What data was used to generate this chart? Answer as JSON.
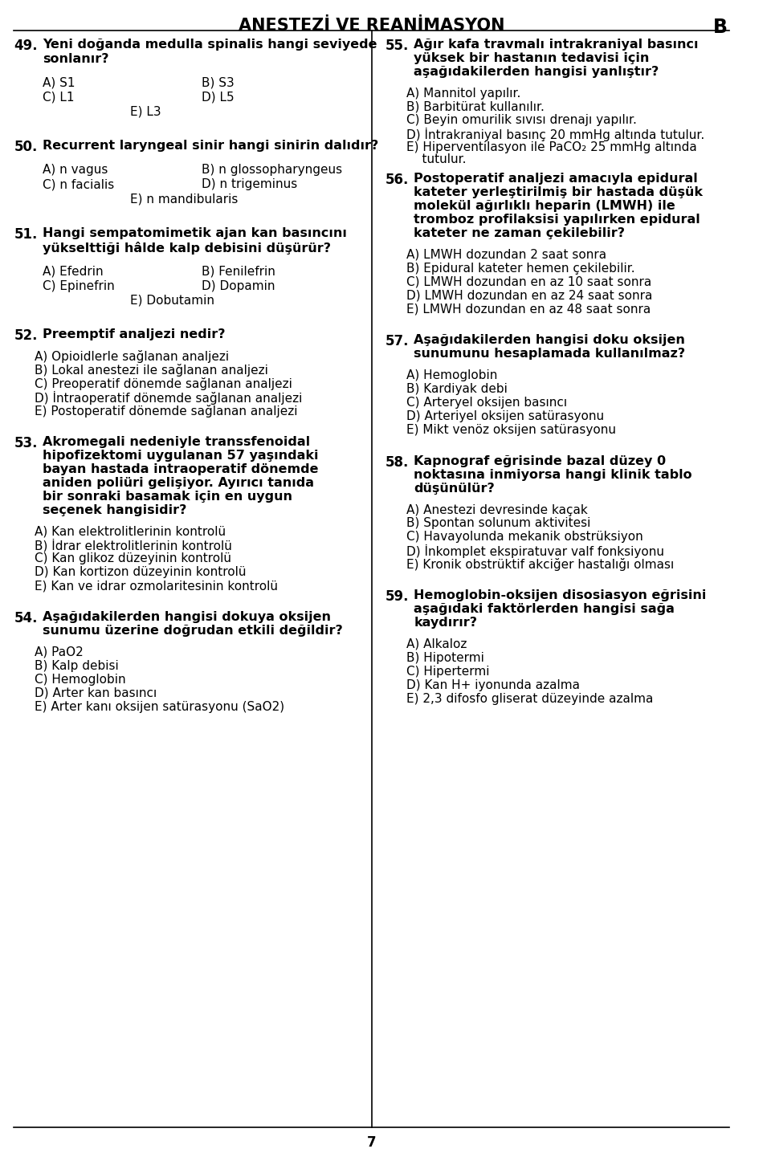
{
  "title": "ANESTEZİ VE REANİMASYON",
  "title_letter": "B",
  "background_color": "#ffffff",
  "text_color": "#000000",
  "font_family": "DejaVu Sans",
  "page_number": "7",
  "left_column": [
    {
      "type": "question",
      "number": "49.",
      "bold": true,
      "text": "Yeni doğanda medulla spinalis hangi seviyede\nsonlanır?",
      "options": [
        {
          "label": "A)",
          "text": "S1",
          "col": 0
        },
        {
          "label": "B)",
          "text": "S3",
          "col": 1
        },
        {
          "label": "C)",
          "text": "L1",
          "col": 0
        },
        {
          "label": "D)",
          "text": "L5",
          "col": 1
        },
        {
          "label": "E)",
          "text": "L3",
          "col": "center"
        }
      ]
    },
    {
      "type": "question",
      "number": "50.",
      "bold": true,
      "text": "Recurrent laryngeal sinir hangi sinirin dalıdır?",
      "options": [
        {
          "label": "A)",
          "text": "n vagus",
          "col": 0
        },
        {
          "label": "B)",
          "text": "n glossopharyngeus",
          "col": 1
        },
        {
          "label": "C)",
          "text": "n facialis",
          "col": 0
        },
        {
          "label": "D)",
          "text": "n trigeminus",
          "col": 1
        },
        {
          "label": "E)",
          "text": "n mandibularis",
          "col": "center"
        }
      ]
    },
    {
      "type": "question",
      "number": "51.",
      "bold": true,
      "text": "Hangi sempatomimetik ajan kan basıncını\nyükselttiği hâlde kalp debisini düşürür?",
      "options": [
        {
          "label": "A)",
          "text": "Efedrin",
          "col": 0
        },
        {
          "label": "B)",
          "text": "Fenilefrin",
          "col": 1
        },
        {
          "label": "C)",
          "text": "Epinefrin",
          "col": 0
        },
        {
          "label": "D)",
          "text": "Dopamin",
          "col": 1
        },
        {
          "label": "E)",
          "text": "Dobutamin",
          "col": "center"
        }
      ]
    },
    {
      "type": "question",
      "number": "52.",
      "bold": true,
      "text": "Preemptif analjezi nedir?",
      "options_list": [
        "A) Opioidlerle sağlanan analjezi",
        "B) Lokal anestezi ile sağlanan analjezi",
        "C) Preoperatif dönemde sağlanan analjezi",
        "D) İntraoperatif dönemde sağlanan analjezi",
        "E) Postoperatif dönemde sağlanan analjezi"
      ]
    },
    {
      "type": "question",
      "number": "53.",
      "bold": true,
      "text": "Akromegali nedeniyle transsfenoidal hipofizektomi uygulanan 57 yaşındaki bayan hastada intraoperatif dönemde aniden poliüri gelişiyor. Ayırıcı tanıda bir sonraki basamak için en uygun seçenek hangisidir?",
      "underline_words": [
        "en uygun"
      ],
      "options_list": [
        "A) Kan elektrolitlerinin kontrolü",
        "B) İdrar elektrolitlerinin kontrolü",
        "C) Kan glikoz düzeyinin kontrolü",
        "D) Kan kortizon düzeyinin kontrolü",
        "E) Kan ve idrar ozmolaritesinin kontrolü"
      ]
    },
    {
      "type": "question",
      "number": "54.",
      "bold": true,
      "text": "Aşağıdakilerden hangisi dokuya oksijen sunumu üzerine doğrudan etkili değildir?",
      "underline_words": [
        "değildir"
      ],
      "options_list": [
        "A) PaO2",
        "B) Kalp debisi",
        "C) Hemoglobin",
        "D) Arter kan basıncı",
        "E) Arter kanı oksijen satürasyonu (SaO2)"
      ]
    }
  ],
  "right_column": [
    {
      "type": "question",
      "number": "55.",
      "bold": true,
      "text": "Ağır kafa travmalı intrakraniyal basıncı yüksek bir hastanın tedavisi için aşağıdakilerden hangisi yanlıştır?",
      "options_list": [
        "A) Mannitol yapılır.",
        "B) Barbitürat kullanılır.",
        "C) Beyin omurilik sıvısı drenajı yapılır.",
        "D) İntrakraniyal basınç 20 mmHg altında tutulur.",
        "E) Hiperventilasyon ile PaCO₂ 25 mmHg altında\n    tutulur."
      ]
    },
    {
      "type": "question",
      "number": "56.",
      "bold": true,
      "text": "Postoperatif analjezi amacıyla epidural kateter yerleştirilmiş bir hastada düşük molekül ağırlıklı heparin (LMWH) ile tromboz profilaksisi yapılırken epidural kateter ne zaman çekilebilir?",
      "options_list": [
        "A) LMWH dozundan 2 saat sonra",
        "B) Epidural kateter hemen çekilebilir.",
        "C) LMWH dozundan en az 10 saat sonra",
        "D) LMWH dozundan en az 24 saat sonra",
        "E) LMWH dozundan en az 48 saat sonra"
      ]
    },
    {
      "type": "question",
      "number": "57.",
      "bold": true,
      "text": "Aşağıdakilerden hangisi doku oksijen sunumunu hesaplamada kullanılmaz?",
      "underline_words": [
        "kullanılmaz"
      ],
      "options_list": [
        "A) Hemoglobin",
        "B) Kardiyak debi",
        "C) Arteryel oksijen basıncı",
        "D) Arteriyel oksijen satürasyonu",
        "E) Mikt venöz oksijen satürasyonu"
      ]
    },
    {
      "type": "question",
      "number": "58.",
      "bold": true,
      "text": "Kapnograf eğrisinde bazal düzey 0 noktasına inmiyorsa hangi klinik tablo düşünülür?",
      "underline_words": [
        "inmiyorsa"
      ],
      "options_list": [
        "A) Anestezi devresinde kaçak",
        "B) Spontan solunum aktivitesi",
        "C) Havayolunda mekanik obstrüksiyon",
        "D) İnkomplet ekspiratuvar valf fonksiyonu",
        "E) Kronik obstrüktif akciğer hastalığı olması"
      ]
    },
    {
      "type": "question",
      "number": "59.",
      "bold": true,
      "text": "Hemoglobin-oksijen disosiasyon eğrisini aşağıdaki faktörlerden hangisi sağa kaydırır?",
      "options_list": [
        "A) Alkaloz",
        "B) Hipotermi",
        "C) Hipertermi",
        "D) Kan H+ iyonunda azalma",
        "E) 2,3 difosfo gliserat düzeyinde azalma"
      ]
    }
  ]
}
